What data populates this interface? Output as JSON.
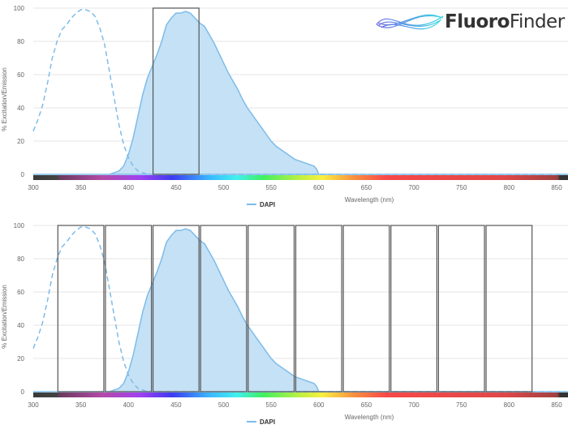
{
  "logo": {
    "bold": "Fluoro",
    "light": "Finder"
  },
  "colors": {
    "series": "#7cbcea",
    "fill": "#c5e1f5",
    "filter_box": "#555555",
    "grid": "#e6e6e6"
  },
  "chart_data": [
    {
      "type": "area",
      "xlabel": "Wavelength (nm)",
      "ylabel": "% Excitation/Emission",
      "xlim": [
        300,
        860
      ],
      "ylim": [
        0,
        100
      ],
      "x_ticks": [
        300,
        350,
        400,
        450,
        500,
        550,
        600,
        650,
        700,
        750,
        800,
        850
      ],
      "y_ticks": [
        0,
        20,
        40,
        60,
        80,
        100
      ],
      "grid": true,
      "legend": "bottom-center",
      "series": [
        {
          "name": "DAPI",
          "excitation": [
            [
              300,
              26
            ],
            [
              305,
              33
            ],
            [
              310,
              42
            ],
            [
              315,
              55
            ],
            [
              320,
              70
            ],
            [
              325,
              80
            ],
            [
              330,
              87
            ],
            [
              335,
              90
            ],
            [
              340,
              94
            ],
            [
              345,
              97
            ],
            [
              350,
              99
            ],
            [
              355,
              99
            ],
            [
              360,
              98
            ],
            [
              365,
              95
            ],
            [
              370,
              88
            ],
            [
              375,
              78
            ],
            [
              380,
              62
            ],
            [
              385,
              46
            ],
            [
              390,
              30
            ],
            [
              395,
              18
            ],
            [
              400,
              10
            ],
            [
              405,
              5
            ],
            [
              410,
              2
            ],
            [
              415,
              1
            ],
            [
              420,
              0
            ],
            [
              860,
              0
            ]
          ],
          "emission": [
            [
              380,
              0
            ],
            [
              385,
              1
            ],
            [
              390,
              2
            ],
            [
              395,
              5
            ],
            [
              400,
              12
            ],
            [
              405,
              22
            ],
            [
              410,
              35
            ],
            [
              415,
              48
            ],
            [
              420,
              58
            ],
            [
              425,
              65
            ],
            [
              430,
              72
            ],
            [
              435,
              80
            ],
            [
              440,
              90
            ],
            [
              445,
              94
            ],
            [
              450,
              97
            ],
            [
              455,
              97
            ],
            [
              460,
              98
            ],
            [
              465,
              97
            ],
            [
              470,
              94
            ],
            [
              475,
              91
            ],
            [
              480,
              89
            ],
            [
              485,
              84
            ],
            [
              490,
              79
            ],
            [
              495,
              73
            ],
            [
              500,
              67
            ],
            [
              505,
              61
            ],
            [
              510,
              56
            ],
            [
              515,
              51
            ],
            [
              520,
              45
            ],
            [
              525,
              40
            ],
            [
              530,
              36
            ],
            [
              535,
              32
            ],
            [
              540,
              28
            ],
            [
              545,
              24
            ],
            [
              550,
              20
            ],
            [
              555,
              17
            ],
            [
              560,
              15
            ],
            [
              565,
              13
            ],
            [
              570,
              11
            ],
            [
              575,
              9
            ],
            [
              580,
              8
            ],
            [
              585,
              7
            ],
            [
              590,
              6
            ],
            [
              595,
              5
            ],
            [
              598,
              3
            ],
            [
              600,
              0
            ]
          ]
        }
      ],
      "filters": [
        [
          425,
          475
        ]
      ]
    },
    {
      "type": "area",
      "xlabel": "Wavelength (nm)",
      "ylabel": "% Excitation/Emission",
      "xlim": [
        300,
        860
      ],
      "ylim": [
        0,
        100
      ],
      "x_ticks": [
        300,
        350,
        400,
        450,
        500,
        550,
        600,
        650,
        700,
        750,
        800,
        850
      ],
      "y_ticks": [
        0,
        20,
        40,
        60,
        80,
        100
      ],
      "grid": true,
      "legend": "bottom-center",
      "series": [
        {
          "name": "DAPI",
          "same_as_top": true
        }
      ],
      "filters": [
        [
          325,
          375
        ],
        [
          375,
          425
        ],
        [
          425,
          475
        ],
        [
          475,
          525
        ],
        [
          525,
          575
        ],
        [
          575,
          625
        ],
        [
          625,
          675
        ],
        [
          675,
          725
        ],
        [
          725,
          775
        ],
        [
          775,
          825
        ]
      ]
    }
  ]
}
